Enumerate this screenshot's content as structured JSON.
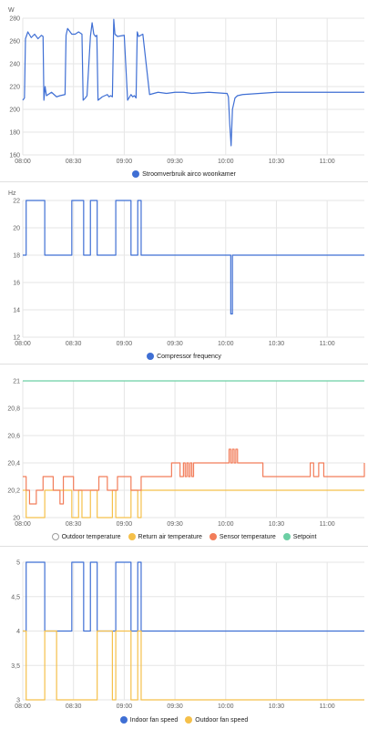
{
  "colors": {
    "blue": "#3f6fd4",
    "orange": "#f5c04a",
    "red": "#f27d5a",
    "green": "#6ccfa4",
    "grid": "#e6e6e6"
  },
  "chart_data": [
    {
      "type": "line",
      "unit": "W",
      "ylim": [
        160,
        280
      ],
      "yticks": [
        "160",
        "180",
        "200",
        "220",
        "240",
        "260",
        "280"
      ],
      "xlim": [
        0,
        202
      ],
      "xticks": [
        "08:00",
        "08:30",
        "09:00",
        "09:30",
        "10:00",
        "10:30",
        "11:00"
      ],
      "xtick_minutes": [
        0,
        30,
        60,
        90,
        120,
        150,
        180
      ],
      "series": [
        {
          "name": "Stroomverbruik airco woonkamer",
          "color": "#3f6fd4",
          "step": false,
          "x": [
            0,
            1,
            1.6,
            3,
            5,
            7,
            9,
            11,
            12,
            12.5,
            13.2,
            14,
            17,
            20,
            22,
            25,
            25.6,
            26.5,
            29,
            31,
            33,
            35,
            35.7,
            37,
            38,
            40,
            41,
            42,
            43,
            43.8,
            44.5,
            47,
            50,
            51,
            52,
            53,
            53.8,
            54.5,
            56,
            60,
            62,
            64,
            65,
            66,
            67,
            67.7,
            68.5,
            71,
            75,
            80,
            85,
            90,
            95,
            100,
            110,
            120,
            120.8,
            121.6,
            122.4,
            123.2,
            124,
            125.5,
            127,
            130,
            140,
            150,
            160,
            170,
            180,
            190,
            200,
            202
          ],
          "y": [
            208,
            210,
            262,
            268,
            263,
            266,
            262,
            265,
            264,
            208,
            220,
            212,
            215,
            211,
            212,
            213,
            265,
            271,
            266,
            266,
            268,
            266,
            208,
            210,
            212,
            264,
            276,
            266,
            264,
            265,
            208,
            211,
            213,
            211,
            212,
            211,
            279,
            266,
            264,
            265,
            208,
            213,
            211,
            212,
            210,
            268,
            264,
            266,
            213,
            215,
            214,
            215,
            215,
            214,
            215,
            214,
            214,
            211,
            187,
            168,
            200,
            210,
            212,
            213,
            214,
            215,
            215,
            215,
            215,
            215,
            215,
            215
          ]
        }
      ]
    },
    {
      "type": "line",
      "unit": "Hz",
      "ylim": [
        12,
        22
      ],
      "yticks": [
        "12",
        "14",
        "16",
        "18",
        "20",
        "22"
      ],
      "xlim": [
        0,
        202
      ],
      "xticks": [
        "08:00",
        "08:30",
        "09:00",
        "09:30",
        "10:00",
        "10:30",
        "11:00"
      ],
      "xtick_minutes": [
        0,
        30,
        60,
        90,
        120,
        150,
        180
      ],
      "series": [
        {
          "name": "Compressor frequency",
          "color": "#3f6fd4",
          "step": true,
          "x": [
            0,
            2,
            13,
            20,
            29,
            36,
            40,
            44,
            53,
            55,
            64,
            68,
            70,
            122,
            123,
            124,
            125,
            202
          ],
          "y": [
            18,
            22,
            18,
            18,
            22,
            18,
            22,
            18,
            18,
            22,
            18,
            22,
            18,
            18,
            13.7,
            18,
            18,
            18
          ]
        }
      ]
    },
    {
      "type": "line",
      "ylim": [
        20,
        21
      ],
      "yticks": [
        "20",
        "20,2",
        "20,4",
        "20,6",
        "20,8",
        "21"
      ],
      "xlim": [
        0,
        202
      ],
      "xticks": [
        "08:00",
        "08:30",
        "09:00",
        "09:30",
        "10:00",
        "10:30",
        "11:00"
      ],
      "xtick_minutes": [
        0,
        30,
        60,
        90,
        120,
        150,
        180
      ],
      "series": [
        {
          "name": "Outdoor temperature",
          "color": "#9e9e9e",
          "hollow": true,
          "step": true,
          "x": [],
          "y": []
        },
        {
          "name": "Return air temperature",
          "color": "#f5c04a",
          "step": true,
          "x": [
            0,
            2,
            13,
            20,
            29,
            33,
            35,
            40,
            44,
            53,
            55,
            64,
            68,
            70,
            202
          ],
          "y": [
            20.2,
            20,
            20.2,
            20.2,
            20,
            20.2,
            20,
            20.2,
            20,
            20.2,
            20,
            20.2,
            20,
            20.2,
            20.2
          ]
        },
        {
          "name": "Sensor temperature",
          "color": "#f27d5a",
          "step": true,
          "x": [
            0,
            2,
            4,
            8,
            12,
            18,
            22,
            24,
            30,
            45,
            50,
            56,
            64,
            70,
            88,
            93,
            95,
            96,
            97,
            98,
            99,
            100,
            101,
            110,
            120,
            122,
            123,
            124,
            125,
            126,
            127,
            128,
            142,
            170,
            172,
            175,
            178,
            202
          ],
          "y": [
            20.3,
            20.2,
            20.1,
            20.2,
            20.3,
            20.2,
            20.1,
            20.3,
            20.2,
            20.3,
            20.2,
            20.3,
            20.2,
            20.3,
            20.4,
            20.3,
            20.4,
            20.3,
            20.4,
            20.3,
            20.4,
            20.3,
            20.4,
            20.4,
            20.4,
            20.5,
            20.4,
            20.5,
            20.4,
            20.5,
            20.4,
            20.4,
            20.3,
            20.4,
            20.3,
            20.4,
            20.3,
            20.4
          ]
        },
        {
          "name": "Setpoint",
          "color": "#6ccfa4",
          "step": true,
          "x": [
            0,
            202
          ],
          "y": [
            21,
            21
          ]
        }
      ]
    },
    {
      "type": "line",
      "ylim": [
        3,
        5
      ],
      "yticks": [
        "3",
        "3,5",
        "4",
        "4,5",
        "5"
      ],
      "xlim": [
        0,
        202
      ],
      "xticks": [
        "08:00",
        "08:30",
        "09:00",
        "09:30",
        "10:00",
        "10:30",
        "11:00"
      ],
      "xtick_minutes": [
        0,
        30,
        60,
        90,
        120,
        150,
        180
      ],
      "series": [
        {
          "name": "Indoor fan speed",
          "color": "#3f6fd4",
          "step": true,
          "x": [
            0,
            2,
            13,
            20,
            29,
            36,
            40,
            44,
            53,
            55,
            64,
            68,
            70,
            202
          ],
          "y": [
            4,
            5,
            4,
            4,
            5,
            4,
            5,
            4,
            4,
            5,
            4,
            5,
            4,
            4
          ]
        },
        {
          "name": "Outdoor fan speed",
          "color": "#f5c04a",
          "step": true,
          "x": [
            0,
            2,
            13,
            20,
            29,
            36,
            40,
            44,
            53,
            55,
            64,
            68,
            70,
            202
          ],
          "y": [
            4,
            3,
            4,
            3,
            3,
            3,
            3,
            4,
            3,
            4,
            3,
            4,
            3,
            3
          ]
        }
      ]
    }
  ]
}
